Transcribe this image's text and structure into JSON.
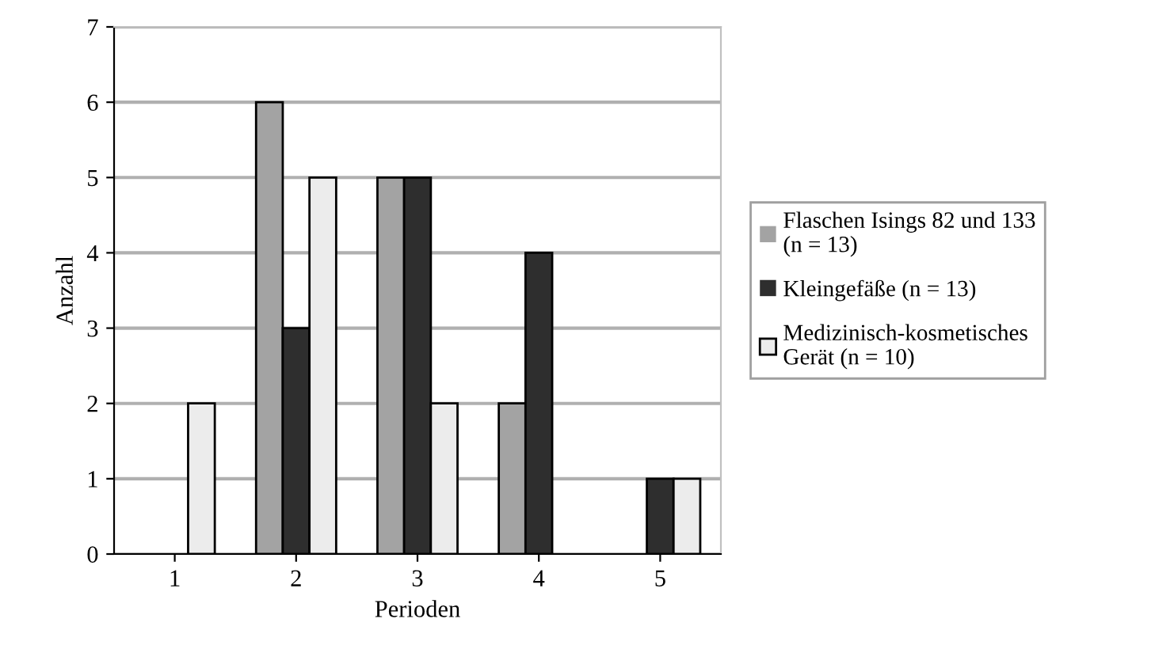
{
  "chart_data": {
    "type": "bar",
    "xlabel": "Perioden",
    "ylabel": "Anzahl",
    "categories": [
      "1",
      "2",
      "3",
      "4",
      "5"
    ],
    "series": [
      {
        "name": "Flaschen Isings 82 und 133\n(n = 13)",
        "color": "#a3a3a3",
        "values": [
          0,
          6,
          5,
          2,
          0
        ]
      },
      {
        "name": "Kleingefäße (n = 13)",
        "color": "#2e2e2e",
        "values": [
          0,
          3,
          5,
          4,
          1
        ]
      },
      {
        "name": "Medizinisch-kosmetisches\nGerät (n = 10)",
        "color": "#ececec",
        "values": [
          2,
          5,
          2,
          0,
          1
        ]
      }
    ],
    "ylim": [
      0,
      7
    ],
    "yticks": [
      0,
      1,
      2,
      3,
      4,
      5,
      6,
      7
    ],
    "grid": "y",
    "legend": "right"
  }
}
